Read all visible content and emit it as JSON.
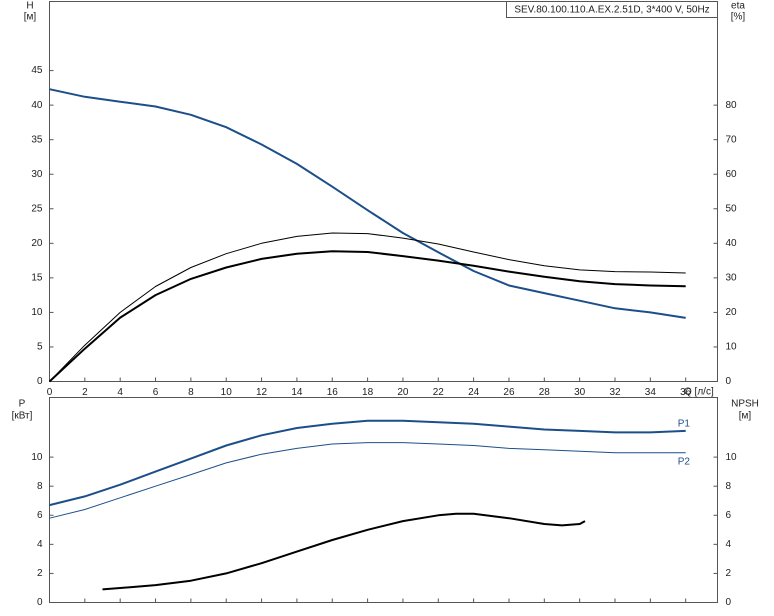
{
  "chart_data": [
    {
      "type": "line",
      "title": "SEV.80.100.110.A.EX.2.51D, 3*400 V, 50Hz",
      "x_label": "Q [л/с]",
      "y_label": "H",
      "y_unit": "[м]",
      "y2_label": "eta",
      "y2_unit": "[%]",
      "xlim": [
        0,
        37.8
      ],
      "ylim": [
        0,
        55
      ],
      "y2lim": [
        0,
        110
      ],
      "xticks": [
        0,
        2,
        4,
        6,
        8,
        10,
        12,
        14,
        16,
        18,
        20,
        22,
        24,
        26,
        28,
        30,
        32,
        34,
        36
      ],
      "yticks": [
        0,
        5,
        10,
        15,
        20,
        25,
        30,
        35,
        40,
        45
      ],
      "y2ticks": [
        0,
        10,
        20,
        30,
        40,
        50,
        60,
        70,
        80
      ],
      "x": [
        0,
        2,
        4,
        6,
        8,
        10,
        12,
        14,
        16,
        18,
        20,
        22,
        24,
        26,
        28,
        30,
        32,
        34,
        36
      ],
      "series": [
        {
          "color": "#1c4f8a",
          "width": 2,
          "values": [
            42.3,
            41.2,
            40.5,
            39.8,
            38.6,
            36.8,
            34.3,
            31.5,
            28.2,
            24.8,
            21.5,
            18.7,
            16.0,
            13.9,
            12.8,
            11.7,
            10.6,
            10.0,
            9.2
          ]
        },
        {
          "color": "#000000",
          "width": 1,
          "axis": "y2",
          "values": [
            0,
            10.5,
            20,
            27.5,
            33,
            37,
            40,
            42,
            43,
            42.8,
            41.5,
            39.8,
            37.5,
            35.3,
            33.5,
            32.3,
            31.8,
            31.7,
            31.4
          ]
        },
        {
          "color": "#000000",
          "width": 2,
          "axis": "y2",
          "values": [
            0,
            9.5,
            18.5,
            25,
            29.7,
            33,
            35.5,
            37,
            37.7,
            37.5,
            36.3,
            35,
            33.5,
            31.8,
            30.3,
            29,
            28.2,
            27.8,
            27.6
          ]
        }
      ]
    },
    {
      "type": "line",
      "y_label": "P",
      "y_unit": "[кВт]",
      "y2_label": "NPSH",
      "y2_unit": "[м]",
      "xlim": [
        0,
        37.8
      ],
      "ylim": [
        0,
        14.1
      ],
      "y2lim": [
        0,
        14.1
      ],
      "xticks": [
        0,
        2,
        4,
        6,
        8,
        10,
        12,
        14,
        16,
        18,
        20,
        22,
        24,
        26,
        28,
        30,
        32,
        34,
        36
      ],
      "yticks": [
        0,
        2,
        4,
        6,
        8,
        10
      ],
      "y2ticks": [
        0,
        2,
        4,
        6,
        8,
        10
      ],
      "series": [
        {
          "name": "P1",
          "color": "#1c4f8a",
          "width": 2,
          "x": [
            0,
            2,
            4,
            6,
            8,
            10,
            12,
            14,
            16,
            18,
            20,
            22,
            24,
            26,
            28,
            30,
            32,
            34,
            36
          ],
          "values": [
            6.7,
            7.3,
            8.1,
            9.0,
            9.9,
            10.8,
            11.5,
            12.0,
            12.3,
            12.5,
            12.5,
            12.4,
            12.3,
            12.1,
            11.9,
            11.8,
            11.7,
            11.7,
            11.8
          ]
        },
        {
          "name": "P2",
          "color": "#1c4f8a",
          "width": 1,
          "x": [
            0,
            2,
            4,
            6,
            8,
            10,
            12,
            14,
            16,
            18,
            20,
            22,
            24,
            26,
            28,
            30,
            32,
            34,
            36
          ],
          "values": [
            5.8,
            6.4,
            7.2,
            8.0,
            8.8,
            9.6,
            10.2,
            10.6,
            10.9,
            11.0,
            11.0,
            10.9,
            10.8,
            10.6,
            10.5,
            10.4,
            10.3,
            10.3,
            10.3
          ]
        },
        {
          "color": "#000000",
          "width": 2,
          "axis": "y2",
          "x": [
            3,
            4,
            6,
            8,
            10,
            12,
            14,
            16,
            18,
            20,
            22,
            23,
            24,
            26,
            28,
            29,
            30,
            30.3
          ],
          "values": [
            0.9,
            1.0,
            1.2,
            1.5,
            2.0,
            2.7,
            3.5,
            4.3,
            5.0,
            5.6,
            6.0,
            6.1,
            6.1,
            5.8,
            5.4,
            5.3,
            5.4,
            5.6
          ]
        }
      ]
    }
  ]
}
